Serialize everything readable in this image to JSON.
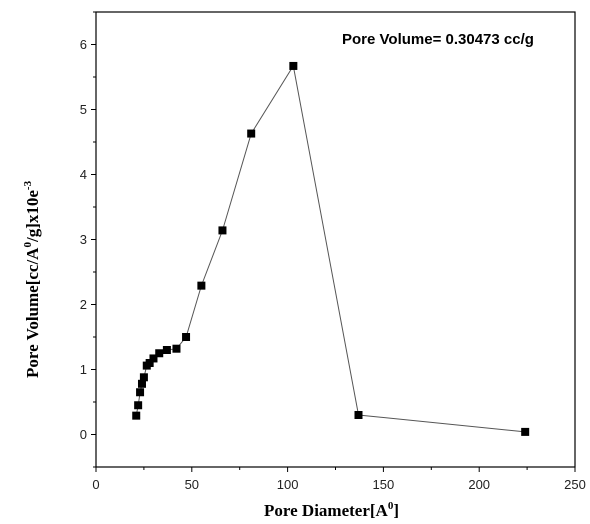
{
  "chart_data": {
    "type": "line",
    "annotation": "Pore Volume= 0.30473 cc/g",
    "xlabel_main": "Pore Diameter[A",
    "xlabel_sup": "0",
    "xlabel_tail": "]",
    "ylabel_main": "Pore Volume[cc/A",
    "ylabel_sup1": "0",
    "ylabel_mid": "/g]x10e",
    "ylabel_sup2": "-3",
    "xlim": [
      0,
      250
    ],
    "ylim": [
      -0.5,
      6.5
    ],
    "x_ticks": [
      0,
      50,
      100,
      150,
      200,
      250
    ],
    "y_ticks": [
      0,
      1,
      2,
      3,
      4,
      5,
      6
    ],
    "grid": false,
    "legend": "none",
    "marker": "square",
    "colors": {
      "series": "#000000",
      "line": "#555555",
      "axis": "#000000"
    },
    "series": [
      {
        "x": [
          21,
          22,
          23,
          24,
          25,
          26.5,
          28,
          30,
          33,
          37,
          42,
          47,
          55,
          66,
          81,
          103,
          137,
          224
        ],
        "y": [
          0.29,
          0.45,
          0.65,
          0.78,
          0.88,
          1.06,
          1.1,
          1.17,
          1.25,
          1.3,
          1.32,
          1.5,
          2.29,
          3.14,
          4.63,
          5.67,
          0.3,
          0.04
        ]
      }
    ]
  }
}
